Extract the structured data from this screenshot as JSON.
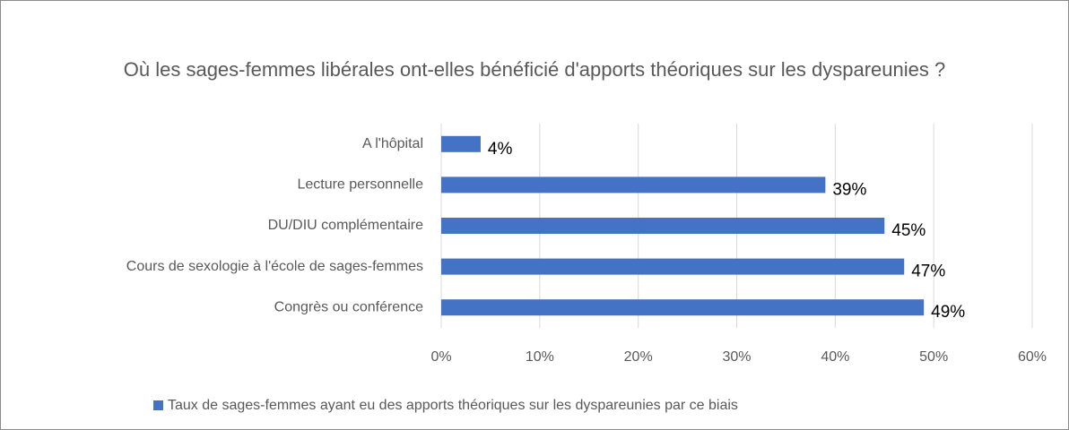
{
  "chart_data": {
    "type": "bar",
    "orientation": "horizontal",
    "title": "Où les sages-femmes libérales ont-elles bénéficié d'apports théoriques sur les dyspareunies ?",
    "categories": [
      "A l'hôpital",
      "Lecture personnelle",
      "DU/DIU complémentaire",
      "Cours de sexologie à l'école de sages-femmes",
      "Congrès ou conférence"
    ],
    "series": [
      {
        "name": "Taux de sages-femmes ayant eu des apports théoriques sur les dyspareunies par ce biais",
        "color": "#4472c4",
        "values": [
          4,
          39,
          45,
          47,
          49
        ],
        "value_labels": [
          "4%",
          "39%",
          "45%",
          "47%",
          "49%"
        ]
      }
    ],
    "xlim": [
      0,
      60
    ],
    "xticks": [
      {
        "value": 0,
        "label": "0%"
      },
      {
        "value": 10,
        "label": "10%"
      },
      {
        "value": 20,
        "label": "20%"
      },
      {
        "value": 30,
        "label": "30%"
      },
      {
        "value": 40,
        "label": "40%"
      },
      {
        "value": 50,
        "label": "50%"
      },
      {
        "value": 60,
        "label": "60%"
      }
    ],
    "grid": true,
    "legend": "bottom"
  }
}
